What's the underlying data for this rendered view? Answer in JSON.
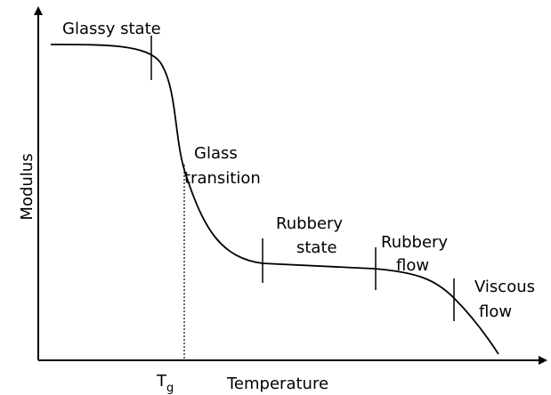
{
  "annotations": [
    {
      "lines": [
        "Glassy state"
      ]
    },
    {
      "lines": [
        "Glass",
        "transition"
      ]
    },
    {
      "lines": [
        "Rubbery",
        "state"
      ]
    },
    {
      "lines": [
        "Rubbery",
        "flow"
      ]
    },
    {
      "lines": [
        "Viscous",
        "flow"
      ]
    }
  ],
  "axes": {
    "y_label": "Modulus",
    "x_label": "Temperature",
    "tg": {
      "main": "T",
      "sub": "g"
    }
  }
}
